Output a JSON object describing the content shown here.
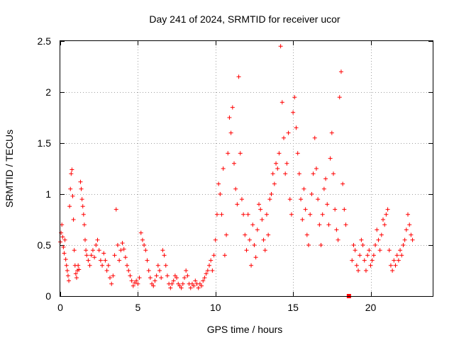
{
  "chart_data": {
    "type": "scatter",
    "title": "Day 241 of 2024, SRMTID for receiver ucor",
    "xlabel": "GPS time / hours",
    "ylabel": "SRMTID / TECUs",
    "xlim": [
      0,
      24
    ],
    "ylim": [
      0,
      2.5
    ],
    "xticks": [
      0,
      5,
      10,
      15,
      20
    ],
    "xtick_labels": [
      "0",
      "5",
      "10",
      "15",
      "20"
    ],
    "yticks": [
      0,
      0.5,
      1,
      1.5,
      2,
      2.5
    ],
    "ytick_labels": [
      "0",
      "0.5",
      "1",
      "1.5",
      "2",
      "2.5"
    ],
    "grid": true,
    "marker": "plus",
    "color": "#ff0000",
    "series": [
      {
        "name": "SRMTID",
        "points": [
          [
            0.0,
            0.53
          ],
          [
            0.05,
            0.62
          ],
          [
            0.1,
            0.7
          ],
          [
            0.15,
            0.58
          ],
          [
            0.2,
            0.48
          ],
          [
            0.25,
            0.42
          ],
          [
            0.3,
            0.55
          ],
          [
            0.35,
            0.36
          ],
          [
            0.4,
            0.3
          ],
          [
            0.45,
            0.25
          ],
          [
            0.5,
            0.2
          ],
          [
            0.55,
            0.15
          ],
          [
            0.6,
            0.88
          ],
          [
            0.65,
            1.05
          ],
          [
            0.7,
            1.2
          ],
          [
            0.75,
            1.24
          ],
          [
            0.8,
            0.98
          ],
          [
            0.85,
            0.75
          ],
          [
            0.9,
            0.45
          ],
          [
            0.95,
            0.3
          ],
          [
            1.0,
            0.22
          ],
          [
            1.05,
            0.18
          ],
          [
            1.1,
            0.25
          ],
          [
            1.15,
            0.3
          ],
          [
            1.2,
            0.26
          ],
          [
            1.3,
            1.12
          ],
          [
            1.35,
            1.05
          ],
          [
            1.4,
            0.95
          ],
          [
            1.45,
            0.88
          ],
          [
            1.5,
            0.8
          ],
          [
            1.55,
            0.7
          ],
          [
            1.6,
            0.55
          ],
          [
            1.65,
            0.45
          ],
          [
            1.7,
            0.4
          ],
          [
            1.8,
            0.35
          ],
          [
            1.9,
            0.3
          ],
          [
            2.0,
            0.4
          ],
          [
            2.1,
            0.45
          ],
          [
            2.2,
            0.38
          ],
          [
            2.3,
            0.5
          ],
          [
            2.4,
            0.55
          ],
          [
            2.5,
            0.45
          ],
          [
            2.6,
            0.35
          ],
          [
            2.7,
            0.3
          ],
          [
            2.8,
            0.42
          ],
          [
            2.9,
            0.35
          ],
          [
            3.0,
            0.25
          ],
          [
            3.1,
            0.3
          ],
          [
            3.2,
            0.18
          ],
          [
            3.3,
            0.12
          ],
          [
            3.4,
            0.2
          ],
          [
            3.5,
            0.4
          ],
          [
            3.6,
            0.85
          ],
          [
            3.7,
            0.5
          ],
          [
            3.8,
            0.35
          ],
          [
            3.9,
            0.45
          ],
          [
            4.0,
            0.52
          ],
          [
            4.1,
            0.46
          ],
          [
            4.2,
            0.38
          ],
          [
            4.3,
            0.3
          ],
          [
            4.4,
            0.25
          ],
          [
            4.5,
            0.2
          ],
          [
            4.6,
            0.15
          ],
          [
            4.7,
            0.1
          ],
          [
            4.8,
            0.13
          ],
          [
            4.9,
            0.15
          ],
          [
            5.0,
            0.12
          ],
          [
            5.1,
            0.18
          ],
          [
            5.2,
            0.62
          ],
          [
            5.3,
            0.55
          ],
          [
            5.4,
            0.5
          ],
          [
            5.5,
            0.45
          ],
          [
            5.6,
            0.35
          ],
          [
            5.7,
            0.25
          ],
          [
            5.8,
            0.18
          ],
          [
            5.9,
            0.12
          ],
          [
            6.0,
            0.1
          ],
          [
            6.1,
            0.15
          ],
          [
            6.2,
            0.2
          ],
          [
            6.3,
            0.3
          ],
          [
            6.4,
            0.25
          ],
          [
            6.5,
            0.18
          ],
          [
            6.6,
            0.45
          ],
          [
            6.7,
            0.4
          ],
          [
            6.8,
            0.3
          ],
          [
            6.9,
            0.2
          ],
          [
            7.0,
            0.12
          ],
          [
            7.1,
            0.08
          ],
          [
            7.2,
            0.12
          ],
          [
            7.3,
            0.15
          ],
          [
            7.4,
            0.2
          ],
          [
            7.5,
            0.18
          ],
          [
            7.6,
            0.12
          ],
          [
            7.7,
            0.1
          ],
          [
            7.8,
            0.08
          ],
          [
            7.9,
            0.12
          ],
          [
            8.0,
            0.18
          ],
          [
            8.1,
            0.25
          ],
          [
            8.2,
            0.2
          ],
          [
            8.3,
            0.12
          ],
          [
            8.4,
            0.08
          ],
          [
            8.5,
            0.12
          ],
          [
            8.6,
            0.1
          ],
          [
            8.7,
            0.15
          ],
          [
            8.8,
            0.12
          ],
          [
            8.9,
            0.08
          ],
          [
            9.0,
            0.12
          ],
          [
            9.1,
            0.1
          ],
          [
            9.2,
            0.15
          ],
          [
            9.3,
            0.18
          ],
          [
            9.4,
            0.22
          ],
          [
            9.5,
            0.25
          ],
          [
            9.6,
            0.3
          ],
          [
            9.7,
            0.35
          ],
          [
            9.8,
            0.25
          ],
          [
            9.9,
            0.4
          ],
          [
            10.0,
            0.55
          ],
          [
            10.1,
            0.8
          ],
          [
            10.2,
            1.1
          ],
          [
            10.3,
            1.0
          ],
          [
            10.4,
            0.8
          ],
          [
            10.5,
            1.25
          ],
          [
            10.6,
            0.4
          ],
          [
            10.7,
            0.6
          ],
          [
            10.8,
            1.4
          ],
          [
            10.9,
            1.75
          ],
          [
            11.0,
            1.6
          ],
          [
            11.1,
            1.85
          ],
          [
            11.2,
            1.3
          ],
          [
            11.3,
            1.05
          ],
          [
            11.4,
            0.9
          ],
          [
            11.5,
            2.15
          ],
          [
            11.6,
            1.4
          ],
          [
            11.7,
            0.95
          ],
          [
            11.8,
            0.8
          ],
          [
            11.9,
            0.6
          ],
          [
            12.0,
            0.45
          ],
          [
            12.1,
            0.8
          ],
          [
            12.2,
            0.55
          ],
          [
            12.3,
            0.3
          ],
          [
            12.4,
            0.7
          ],
          [
            12.5,
            0.5
          ],
          [
            12.6,
            0.38
          ],
          [
            12.7,
            0.65
          ],
          [
            12.8,
            0.9
          ],
          [
            12.9,
            0.85
          ],
          [
            13.0,
            0.75
          ],
          [
            13.1,
            0.55
          ],
          [
            13.2,
            0.45
          ],
          [
            13.3,
            0.8
          ],
          [
            13.4,
            0.6
          ],
          [
            13.5,
            0.95
          ],
          [
            13.6,
            1.0
          ],
          [
            13.7,
            1.2
          ],
          [
            13.8,
            1.1
          ],
          [
            13.9,
            1.3
          ],
          [
            14.0,
            1.25
          ],
          [
            14.1,
            1.4
          ],
          [
            14.2,
            2.45
          ],
          [
            14.3,
            1.9
          ],
          [
            14.4,
            1.55
          ],
          [
            14.5,
            1.2
          ],
          [
            14.6,
            1.3
          ],
          [
            14.7,
            1.6
          ],
          [
            14.8,
            0.95
          ],
          [
            14.9,
            0.8
          ],
          [
            15.0,
            1.8
          ],
          [
            15.1,
            1.95
          ],
          [
            15.2,
            1.65
          ],
          [
            15.3,
            1.4
          ],
          [
            15.4,
            1.2
          ],
          [
            15.5,
            0.95
          ],
          [
            15.6,
            0.75
          ],
          [
            15.7,
            1.05
          ],
          [
            15.8,
            0.85
          ],
          [
            15.9,
            0.6
          ],
          [
            16.0,
            0.5
          ],
          [
            16.1,
            0.8
          ],
          [
            16.2,
            1.0
          ],
          [
            16.3,
            1.2
          ],
          [
            16.4,
            1.55
          ],
          [
            16.5,
            1.25
          ],
          [
            16.6,
            0.95
          ],
          [
            16.7,
            0.7
          ],
          [
            16.8,
            0.5
          ],
          [
            16.9,
            0.8
          ],
          [
            17.0,
            1.05
          ],
          [
            17.1,
            1.15
          ],
          [
            17.2,
            0.9
          ],
          [
            17.3,
            0.7
          ],
          [
            17.4,
            1.35
          ],
          [
            17.5,
            1.6
          ],
          [
            17.6,
            1.2
          ],
          [
            17.7,
            0.85
          ],
          [
            17.8,
            0.65
          ],
          [
            17.9,
            0.55
          ],
          [
            18.0,
            1.95
          ],
          [
            18.1,
            2.2
          ],
          [
            18.2,
            1.1
          ],
          [
            18.3,
            0.85
          ],
          [
            18.4,
            0.7
          ],
          [
            18.8,
            0.35
          ],
          [
            18.9,
            0.5
          ],
          [
            19.0,
            0.45
          ],
          [
            19.1,
            0.3
          ],
          [
            19.2,
            0.25
          ],
          [
            19.3,
            0.4
          ],
          [
            19.4,
            0.55
          ],
          [
            19.5,
            0.5
          ],
          [
            19.6,
            0.35
          ],
          [
            19.7,
            0.25
          ],
          [
            19.8,
            0.4
          ],
          [
            19.9,
            0.45
          ],
          [
            20.0,
            0.3
          ],
          [
            20.1,
            0.35
          ],
          [
            20.2,
            0.4
          ],
          [
            20.3,
            0.5
          ],
          [
            20.4,
            0.65
          ],
          [
            20.5,
            0.55
          ],
          [
            20.6,
            0.45
          ],
          [
            20.7,
            0.6
          ],
          [
            20.8,
            0.75
          ],
          [
            20.9,
            0.7
          ],
          [
            21.0,
            0.8
          ],
          [
            21.1,
            0.85
          ],
          [
            21.2,
            0.45
          ],
          [
            21.3,
            0.3
          ],
          [
            21.4,
            0.25
          ],
          [
            21.5,
            0.35
          ],
          [
            21.6,
            0.3
          ],
          [
            21.7,
            0.4
          ],
          [
            21.8,
            0.35
          ],
          [
            21.9,
            0.45
          ],
          [
            22.0,
            0.4
          ],
          [
            22.1,
            0.5
          ],
          [
            22.2,
            0.55
          ],
          [
            22.3,
            0.65
          ],
          [
            22.4,
            0.8
          ],
          [
            22.5,
            0.7
          ],
          [
            22.6,
            0.6
          ],
          [
            22.7,
            0.55
          ]
        ]
      }
    ],
    "outlier_square": [
      18.6,
      0.0
    ]
  }
}
